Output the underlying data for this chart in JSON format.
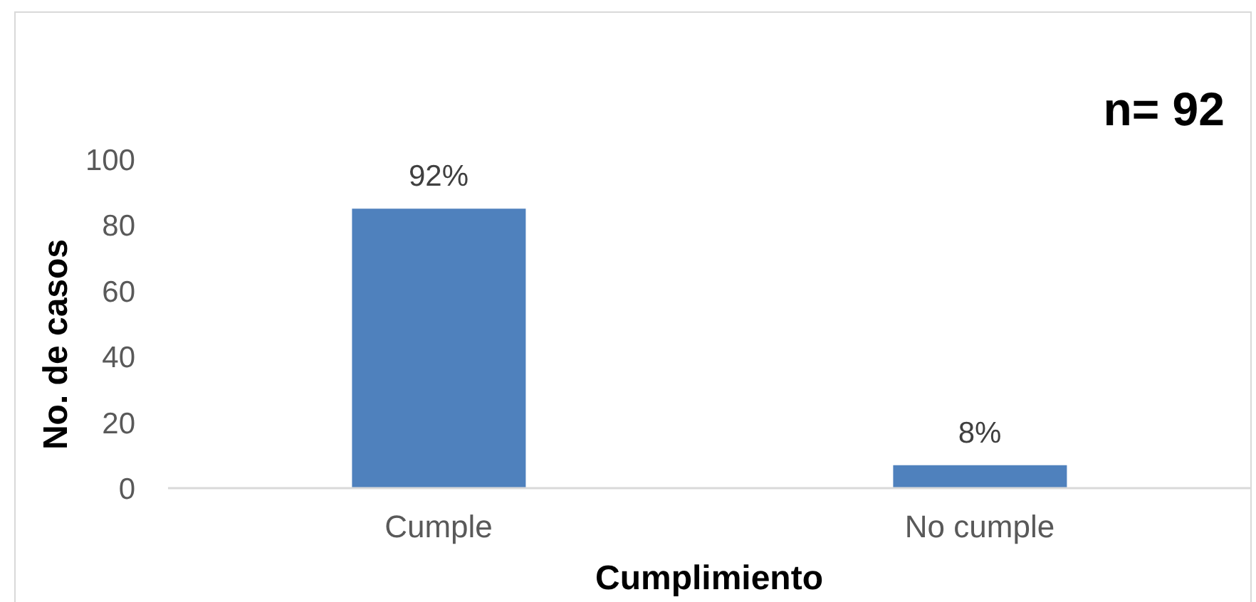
{
  "chart_data": {
    "type": "bar",
    "xlabel": "Cumplimiento",
    "ylabel": "No. de casos",
    "annotations": [
      "n= 92",
      {
        "text": "92%",
        "x": "Cumple",
        "y": 85
      },
      {
        "text": "8%",
        "x": "No cumple",
        "y": 7
      }
    ],
    "categories": [
      "Cumple",
      "No cumple"
    ],
    "values": [
      85,
      7
    ],
    "color": "#4f81bd",
    "ylim": [
      0,
      100
    ],
    "yticks": [
      0,
      20,
      40,
      60,
      80,
      100
    ],
    "grid": false
  }
}
